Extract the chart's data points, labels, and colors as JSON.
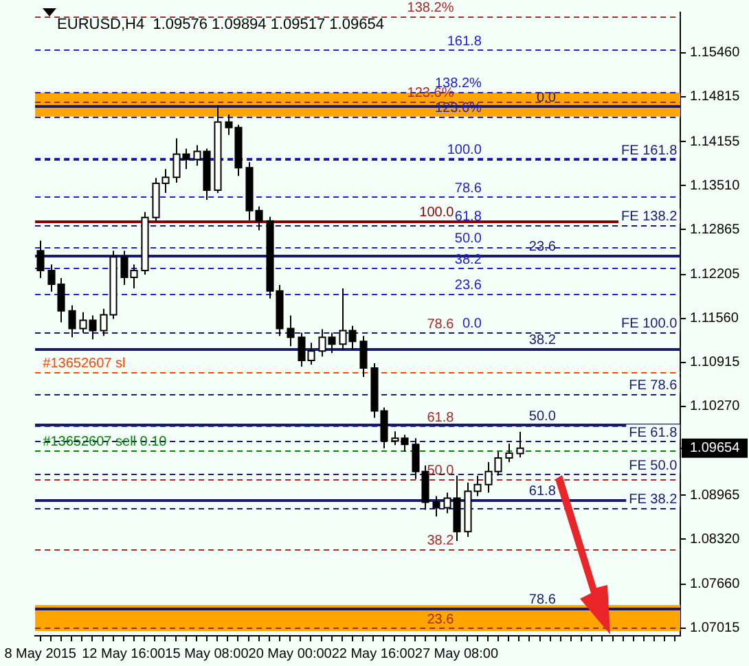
{
  "chart_data": {
    "type": "candlestick",
    "title": "EURUSD,H4  1.09576 1.09894 1.09517 1.09654",
    "categories": [
      "8 May 2015",
      null,
      null,
      null,
      null,
      null,
      null,
      null,
      "12 May 16:00",
      null,
      null,
      null,
      null,
      null,
      null,
      null,
      "15 May 08:00",
      null,
      null,
      null,
      null,
      null,
      null,
      null,
      "20 May 00:00",
      null,
      null,
      null,
      null,
      null,
      null,
      null,
      "22 May 16:00",
      null,
      null,
      null,
      null,
      null,
      null,
      null,
      "27 May 08:00",
      null,
      null,
      null,
      null,
      null,
      null,
      null,
      null,
      null,
      null,
      null,
      null,
      null,
      null,
      null,
      null,
      null,
      null,
      null,
      null,
      null
    ],
    "ohlc": [
      [
        1.1255,
        1.127,
        1.1215,
        1.1226
      ],
      [
        1.1226,
        1.1235,
        1.1195,
        1.1206
      ],
      [
        1.1206,
        1.1215,
        1.115,
        1.1167
      ],
      [
        1.1167,
        1.1175,
        1.1128,
        1.1141
      ],
      [
        1.1141,
        1.1165,
        1.1135,
        1.1153
      ],
      [
        1.1153,
        1.116,
        1.1125,
        1.1138
      ],
      [
        1.1138,
        1.117,
        1.113,
        1.1161
      ],
      [
        1.1161,
        1.1255,
        1.1155,
        1.1246
      ],
      [
        1.1246,
        1.1255,
        1.1205,
        1.1216
      ],
      [
        1.1216,
        1.1235,
        1.12,
        1.1226
      ],
      [
        1.1226,
        1.1312,
        1.122,
        1.1304
      ],
      [
        1.1304,
        1.1362,
        1.1298,
        1.1354
      ],
      [
        1.1354,
        1.1375,
        1.134,
        1.1363
      ],
      [
        1.1363,
        1.142,
        1.1355,
        1.1397
      ],
      [
        1.1397,
        1.1405,
        1.1375,
        1.1389
      ],
      [
        1.1389,
        1.141,
        1.138,
        1.1401
      ],
      [
        1.1401,
        1.1405,
        1.133,
        1.1344
      ],
      [
        1.1344,
        1.1469,
        1.134,
        1.1444
      ],
      [
        1.1444,
        1.1455,
        1.1425,
        1.1436
      ],
      [
        1.1436,
        1.144,
        1.1365,
        1.1377
      ],
      [
        1.1377,
        1.1385,
        1.13,
        1.1314
      ],
      [
        1.1314,
        1.132,
        1.1285,
        1.1299
      ],
      [
        1.1299,
        1.1305,
        1.1185,
        1.1196
      ],
      [
        1.1196,
        1.1205,
        1.113,
        1.1141
      ],
      [
        1.1141,
        1.116,
        1.1115,
        1.1128
      ],
      [
        1.1128,
        1.1135,
        1.1085,
        1.1094
      ],
      [
        1.1094,
        1.112,
        1.1088,
        1.1108
      ],
      [
        1.1108,
        1.114,
        1.11,
        1.1128
      ],
      [
        1.1128,
        1.1135,
        1.1105,
        1.1118
      ],
      [
        1.1118,
        1.12,
        1.111,
        1.1138
      ],
      [
        1.1138,
        1.1145,
        1.111,
        1.1122
      ],
      [
        1.1122,
        1.113,
        1.107,
        1.1083
      ],
      [
        1.1083,
        1.109,
        1.101,
        1.102
      ],
      [
        1.102,
        1.1025,
        1.0965,
        1.0976
      ],
      [
        1.0976,
        1.099,
        1.097,
        1.098
      ],
      [
        1.098,
        1.0985,
        1.096,
        1.0971
      ],
      [
        1.0971,
        1.098,
        1.092,
        1.0931
      ],
      [
        1.0931,
        1.094,
        1.0875,
        1.0886
      ],
      [
        1.0886,
        1.0895,
        1.0865,
        1.0878
      ],
      [
        1.0878,
        1.09,
        1.087,
        1.0892
      ],
      [
        1.0892,
        1.0925,
        1.0829,
        1.0843
      ],
      [
        1.0843,
        1.0915,
        1.0835,
        1.0902
      ],
      [
        1.0902,
        1.0925,
        1.0895,
        1.0912
      ],
      [
        1.0912,
        1.0945,
        1.09,
        1.0931
      ],
      [
        1.0931,
        1.096,
        1.0925,
        1.0951
      ],
      [
        1.0951,
        1.0972,
        1.0945,
        1.0958
      ],
      [
        1.09576,
        1.09894,
        1.09517,
        1.09654
      ],
      null,
      null,
      null,
      null,
      null,
      null,
      null,
      null,
      null,
      null,
      null,
      null,
      null,
      null,
      null
    ],
    "ylim": [
      1.069,
      1.1605
    ],
    "yticks": [
      {
        "value": 1.07015,
        "label": "1.07015"
      },
      {
        "value": 1.0766,
        "label": "1.07660"
      },
      {
        "value": 1.0832,
        "label": "1.08320"
      },
      {
        "value": 1.08965,
        "label": "1.08965"
      },
      {
        "value": 1.09654,
        "label": "1.09654"
      },
      {
        "value": 1.1027,
        "label": "1.10270"
      },
      {
        "value": 1.10915,
        "label": "1.10915"
      },
      {
        "value": 1.1156,
        "label": "1.11560"
      },
      {
        "value": 1.12205,
        "label": "1.12205"
      },
      {
        "value": 1.12865,
        "label": "1.12865"
      },
      {
        "value": 1.1351,
        "label": "1.13510"
      },
      {
        "value": 1.14155,
        "label": "1.14155"
      },
      {
        "value": 1.14815,
        "label": "1.14815"
      },
      {
        "value": 1.1546,
        "label": "1.15460"
      }
    ],
    "bands": [
      {
        "axis": "y",
        "from": 1.1452,
        "to": 1.1487,
        "color": "#ffa500"
      },
      {
        "axis": "y",
        "from": 1.0697,
        "to": 1.0735,
        "color": "#ffa500"
      }
    ],
    "ref_lines": [
      {
        "axis": "y",
        "value": 1.155,
        "color": "#2020d0",
        "line_style": "dashed"
      },
      {
        "axis": "y",
        "value": 1.1489,
        "color": "#2020d0",
        "line_style": "dashed"
      },
      {
        "axis": "y",
        "value": 1.1452,
        "color": "#2020d0",
        "line_style": "dashed"
      },
      {
        "axis": "y",
        "value": 1.1391,
        "color": "#2020d0",
        "line_style": "dashed"
      },
      {
        "axis": "y",
        "value": 1.1334,
        "color": "#2020d0",
        "line_style": "dashed"
      },
      {
        "axis": "y",
        "value": 1.1293,
        "color": "#2020d0",
        "line_style": "dashed"
      },
      {
        "axis": "y",
        "value": 1.1261,
        "color": "#2020d0",
        "line_style": "dashed"
      },
      {
        "axis": "y",
        "value": 1.123,
        "color": "#2020d0",
        "line_style": "dashed"
      },
      {
        "axis": "y",
        "value": 1.1192,
        "color": "#2020d0",
        "line_style": "dashed"
      },
      {
        "axis": "y",
        "value": 1.1136,
        "color": "#2020d0",
        "line_style": "dashed"
      },
      {
        "axis": "y",
        "value": 1.1599,
        "color": "#a52a2a",
        "line_style": "dashed"
      },
      {
        "axis": "y",
        "value": 1.1475,
        "color": "#a52a2a",
        "line_style": "dashed"
      },
      {
        "axis": "y",
        "value": 1.1135,
        "color": "#a52a2a",
        "line_style": "dashed"
      },
      {
        "axis": "y",
        "value": 1.0998,
        "color": "#a52a2a",
        "line_style": "dashed"
      },
      {
        "axis": "y",
        "value": 1.092,
        "color": "#a52a2a",
        "line_style": "dashed"
      },
      {
        "axis": "y",
        "value": 1.0817,
        "color": "#a52a2a",
        "line_style": "dashed"
      },
      {
        "axis": "y",
        "value": 1.0702,
        "color": "#a52a2a",
        "line_style": "dashed"
      },
      {
        "axis": "y",
        "value": 1.1299,
        "color": "#8b0000",
        "line_style": "solid"
      },
      {
        "axis": "y",
        "value": 1.1467,
        "color": "#191970",
        "line_style": "solid"
      },
      {
        "axis": "y",
        "value": 1.1249,
        "color": "#191970",
        "line_style": "solid"
      },
      {
        "axis": "y",
        "value": 1.1112,
        "color": "#191970",
        "line_style": "solid"
      },
      {
        "axis": "y",
        "value": 1.1,
        "color": "#191970",
        "line_style": "solid"
      },
      {
        "axis": "y",
        "value": 1.089,
        "color": "#191970",
        "line_style": "solid"
      },
      {
        "axis": "y",
        "value": 1.0731,
        "color": "#191970",
        "line_style": "solid"
      },
      {
        "axis": "y",
        "value": 1.139,
        "color": "#191970",
        "line_style": "dashed"
      },
      {
        "axis": "y",
        "value": 1.1293,
        "color": "#191970",
        "line_style": "dashed"
      },
      {
        "axis": "y",
        "value": 1.1136,
        "color": "#191970",
        "line_style": "dashed"
      },
      {
        "axis": "y",
        "value": 1.1045,
        "color": "#191970",
        "line_style": "dashed"
      },
      {
        "axis": "y",
        "value": 1.0976,
        "color": "#191970",
        "line_style": "dashed"
      },
      {
        "axis": "y",
        "value": 1.0927,
        "color": "#191970",
        "line_style": "dashed"
      },
      {
        "axis": "y",
        "value": 1.0878,
        "color": "#191970",
        "line_style": "dashed"
      },
      {
        "axis": "y",
        "value": 1.1077,
        "color": "#ff4500",
        "line_style": "dashed"
      },
      {
        "axis": "y",
        "value": 1.0963,
        "color": "#008000",
        "line_style": "dashed"
      }
    ],
    "annotations": [
      {
        "text": "161.8",
        "y": 1.155
      },
      {
        "text": "138.2%",
        "y": 1.1489
      },
      {
        "text": "123.6%",
        "y": 1.1452
      },
      {
        "text": "100.0",
        "y": 1.1391
      },
      {
        "text": "78.6",
        "y": 1.1334
      },
      {
        "text": "61.8",
        "y": 1.1293
      },
      {
        "text": "50.0",
        "y": 1.1261
      },
      {
        "text": "38.2",
        "y": 1.123
      },
      {
        "text": "23.6",
        "y": 1.1192
      },
      {
        "text": "0.0",
        "y": 1.1136
      },
      {
        "text": "138.2%",
        "y": 1.1599
      },
      {
        "text": "123.6%",
        "y": 1.1475
      },
      {
        "text": "78.6",
        "y": 1.1135
      },
      {
        "text": "61.8",
        "y": 1.0998
      },
      {
        "text": "50.0",
        "y": 1.092
      },
      {
        "text": "38.2",
        "y": 1.0817
      },
      {
        "text": "23.6",
        "y": 1.0702
      },
      {
        "text": "100.0",
        "y": 1.1299
      },
      {
        "text": "0.0",
        "y": 1.1467
      },
      {
        "text": "23.6",
        "y": 1.1249
      },
      {
        "text": "38.2",
        "y": 1.1112
      },
      {
        "text": "50.0",
        "y": 1.1
      },
      {
        "text": "61.8",
        "y": 1.089
      },
      {
        "text": "78.6",
        "y": 1.0731
      },
      {
        "text": "FE 161.8",
        "y": 1.139
      },
      {
        "text": "FE 138.2",
        "y": 1.1293
      },
      {
        "text": "FE 100.0",
        "y": 1.1136
      },
      {
        "text": "FE 78.6",
        "y": 1.1045
      },
      {
        "text": "FE 61.8",
        "y": 1.0976
      },
      {
        "text": "FE 50.0",
        "y": 1.0927
      },
      {
        "text": "FE 38.2",
        "y": 1.0878
      },
      {
        "text": "#13652607 sl",
        "y": 1.1077
      },
      {
        "text": "#13652607 sell 0.10",
        "y": 1.0963
      }
    ]
  }
}
